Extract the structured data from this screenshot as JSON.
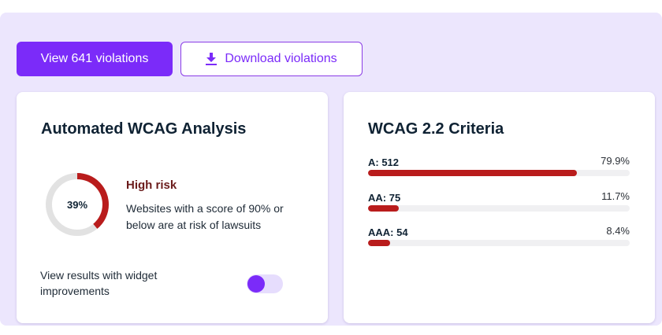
{
  "actions": {
    "view_label": "View 641 violations",
    "download_label": "Download violations",
    "download_icon": "download-icon"
  },
  "analysis": {
    "title": "Automated WCAG Analysis",
    "score_label": "39%",
    "score_fraction": 0.39,
    "risk_title": "High risk",
    "risk_description": "Websites with a score of 90% or below are at risk of lawsuits",
    "widget_label": "View results with widget improvements",
    "widget_toggle_on": true
  },
  "criteria": {
    "title": "WCAG 2.2 Criteria",
    "items": [
      {
        "label": "A: 512",
        "percent_label": "79.9%",
        "fraction": 0.799
      },
      {
        "label": "AA: 75",
        "percent_label": "11.7%",
        "fraction": 0.117
      },
      {
        "label": "AAA: 54",
        "percent_label": "8.4%",
        "fraction": 0.084
      }
    ]
  },
  "colors": {
    "accent": "#7b2bf9",
    "panel": "#ece6fd",
    "risk": "#b91c1c",
    "track": "#e2e2e2"
  }
}
